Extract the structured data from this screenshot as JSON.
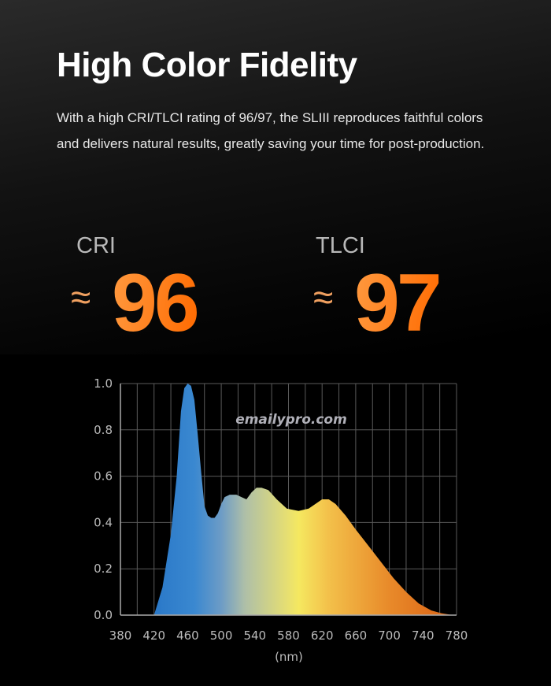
{
  "header": {
    "title": "High Color Fidelity",
    "description": "With a high CRI/TLCI rating of 96/97, the SLIII reproduces faithful colors and delivers natural results, greatly saving your time for post-production."
  },
  "metrics": [
    {
      "label": "CRI",
      "prefix": "≈",
      "value": "96"
    },
    {
      "label": "TLCI",
      "prefix": "≈",
      "value": "97"
    }
  ],
  "colors": {
    "accent": "#ff7a1a",
    "background": "#000000"
  },
  "chart_data": {
    "type": "area",
    "title": "",
    "xlabel": "(nm)",
    "ylabel": "",
    "xlim": [
      380,
      780
    ],
    "ylim": [
      0,
      1.0
    ],
    "x_ticks": [
      "380",
      "420",
      "460",
      "500",
      "540",
      "580",
      "620",
      "660",
      "700",
      "740",
      "780"
    ],
    "y_ticks": [
      "0.0",
      "0.2",
      "0.4",
      "0.6",
      "0.8",
      "1.0"
    ],
    "grid": true,
    "watermark": "emailypro.com",
    "series": [
      {
        "x": [
          420,
          430,
          440,
          447,
          452,
          456,
          460,
          464,
          468,
          472,
          476,
          480,
          484,
          488,
          492,
          496,
          500,
          504,
          510,
          518,
          524,
          530,
          536,
          542,
          548,
          556,
          566,
          578,
          592,
          604,
          612,
          620,
          628,
          636,
          648,
          660,
          675,
          690,
          705,
          720,
          735,
          750,
          762,
          772,
          780
        ],
        "y": [
          0,
          0.12,
          0.35,
          0.6,
          0.88,
          0.98,
          1.0,
          0.99,
          0.93,
          0.78,
          0.62,
          0.47,
          0.43,
          0.42,
          0.42,
          0.44,
          0.48,
          0.51,
          0.52,
          0.52,
          0.51,
          0.5,
          0.53,
          0.55,
          0.55,
          0.54,
          0.5,
          0.46,
          0.45,
          0.46,
          0.48,
          0.5,
          0.5,
          0.48,
          0.43,
          0.37,
          0.3,
          0.23,
          0.16,
          0.1,
          0.05,
          0.02,
          0.008,
          0.002,
          0
        ]
      }
    ]
  }
}
